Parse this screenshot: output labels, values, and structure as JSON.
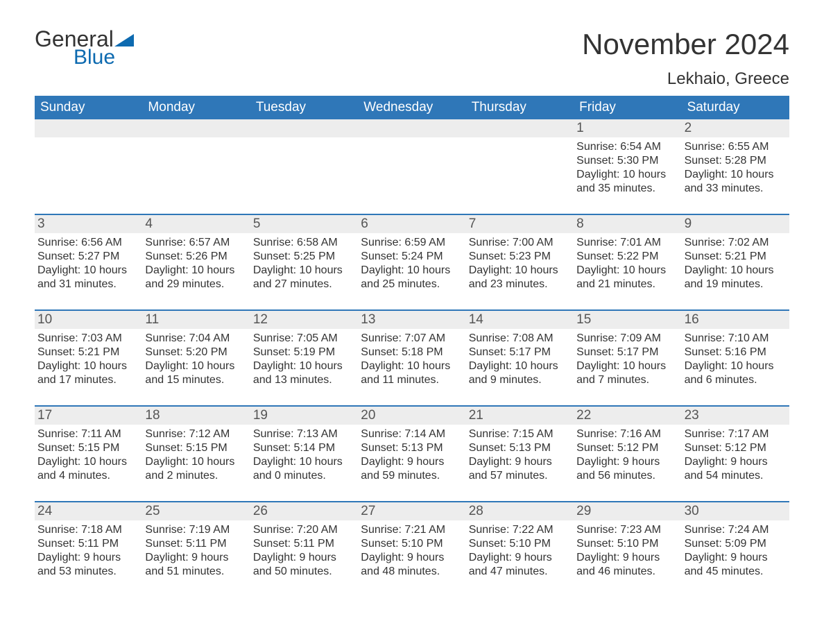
{
  "brand": {
    "text1": "General",
    "text2": "Blue",
    "accent_color": "#0d6ab0"
  },
  "header": {
    "month_title": "November 2024",
    "location": "Lekhaio, Greece"
  },
  "colors": {
    "header_bg": "#2f77b8",
    "header_fg": "#ffffff",
    "daynum_bg": "#ededed",
    "week_border": "#2f77b8",
    "text": "#333333"
  },
  "weekdays": [
    "Sunday",
    "Monday",
    "Tuesday",
    "Wednesday",
    "Thursday",
    "Friday",
    "Saturday"
  ],
  "weeks": [
    [
      null,
      null,
      null,
      null,
      null,
      {
        "day": "1",
        "sunrise": "6:54 AM",
        "sunset": "5:30 PM",
        "daylight": "10 hours and 35 minutes."
      },
      {
        "day": "2",
        "sunrise": "6:55 AM",
        "sunset": "5:28 PM",
        "daylight": "10 hours and 33 minutes."
      }
    ],
    [
      {
        "day": "3",
        "sunrise": "6:56 AM",
        "sunset": "5:27 PM",
        "daylight": "10 hours and 31 minutes."
      },
      {
        "day": "4",
        "sunrise": "6:57 AM",
        "sunset": "5:26 PM",
        "daylight": "10 hours and 29 minutes."
      },
      {
        "day": "5",
        "sunrise": "6:58 AM",
        "sunset": "5:25 PM",
        "daylight": "10 hours and 27 minutes."
      },
      {
        "day": "6",
        "sunrise": "6:59 AM",
        "sunset": "5:24 PM",
        "daylight": "10 hours and 25 minutes."
      },
      {
        "day": "7",
        "sunrise": "7:00 AM",
        "sunset": "5:23 PM",
        "daylight": "10 hours and 23 minutes."
      },
      {
        "day": "8",
        "sunrise": "7:01 AM",
        "sunset": "5:22 PM",
        "daylight": "10 hours and 21 minutes."
      },
      {
        "day": "9",
        "sunrise": "7:02 AM",
        "sunset": "5:21 PM",
        "daylight": "10 hours and 19 minutes."
      }
    ],
    [
      {
        "day": "10",
        "sunrise": "7:03 AM",
        "sunset": "5:21 PM",
        "daylight": "10 hours and 17 minutes."
      },
      {
        "day": "11",
        "sunrise": "7:04 AM",
        "sunset": "5:20 PM",
        "daylight": "10 hours and 15 minutes."
      },
      {
        "day": "12",
        "sunrise": "7:05 AM",
        "sunset": "5:19 PM",
        "daylight": "10 hours and 13 minutes."
      },
      {
        "day": "13",
        "sunrise": "7:07 AM",
        "sunset": "5:18 PM",
        "daylight": "10 hours and 11 minutes."
      },
      {
        "day": "14",
        "sunrise": "7:08 AM",
        "sunset": "5:17 PM",
        "daylight": "10 hours and 9 minutes."
      },
      {
        "day": "15",
        "sunrise": "7:09 AM",
        "sunset": "5:17 PM",
        "daylight": "10 hours and 7 minutes."
      },
      {
        "day": "16",
        "sunrise": "7:10 AM",
        "sunset": "5:16 PM",
        "daylight": "10 hours and 6 minutes."
      }
    ],
    [
      {
        "day": "17",
        "sunrise": "7:11 AM",
        "sunset": "5:15 PM",
        "daylight": "10 hours and 4 minutes."
      },
      {
        "day": "18",
        "sunrise": "7:12 AM",
        "sunset": "5:15 PM",
        "daylight": "10 hours and 2 minutes."
      },
      {
        "day": "19",
        "sunrise": "7:13 AM",
        "sunset": "5:14 PM",
        "daylight": "10 hours and 0 minutes."
      },
      {
        "day": "20",
        "sunrise": "7:14 AM",
        "sunset": "5:13 PM",
        "daylight": "9 hours and 59 minutes."
      },
      {
        "day": "21",
        "sunrise": "7:15 AM",
        "sunset": "5:13 PM",
        "daylight": "9 hours and 57 minutes."
      },
      {
        "day": "22",
        "sunrise": "7:16 AM",
        "sunset": "5:12 PM",
        "daylight": "9 hours and 56 minutes."
      },
      {
        "day": "23",
        "sunrise": "7:17 AM",
        "sunset": "5:12 PM",
        "daylight": "9 hours and 54 minutes."
      }
    ],
    [
      {
        "day": "24",
        "sunrise": "7:18 AM",
        "sunset": "5:11 PM",
        "daylight": "9 hours and 53 minutes."
      },
      {
        "day": "25",
        "sunrise": "7:19 AM",
        "sunset": "5:11 PM",
        "daylight": "9 hours and 51 minutes."
      },
      {
        "day": "26",
        "sunrise": "7:20 AM",
        "sunset": "5:11 PM",
        "daylight": "9 hours and 50 minutes."
      },
      {
        "day": "27",
        "sunrise": "7:21 AM",
        "sunset": "5:10 PM",
        "daylight": "9 hours and 48 minutes."
      },
      {
        "day": "28",
        "sunrise": "7:22 AM",
        "sunset": "5:10 PM",
        "daylight": "9 hours and 47 minutes."
      },
      {
        "day": "29",
        "sunrise": "7:23 AM",
        "sunset": "5:10 PM",
        "daylight": "9 hours and 46 minutes."
      },
      {
        "day": "30",
        "sunrise": "7:24 AM",
        "sunset": "5:09 PM",
        "daylight": "9 hours and 45 minutes."
      }
    ]
  ],
  "labels": {
    "sunrise": "Sunrise: ",
    "sunset": "Sunset: ",
    "daylight": "Daylight: "
  }
}
